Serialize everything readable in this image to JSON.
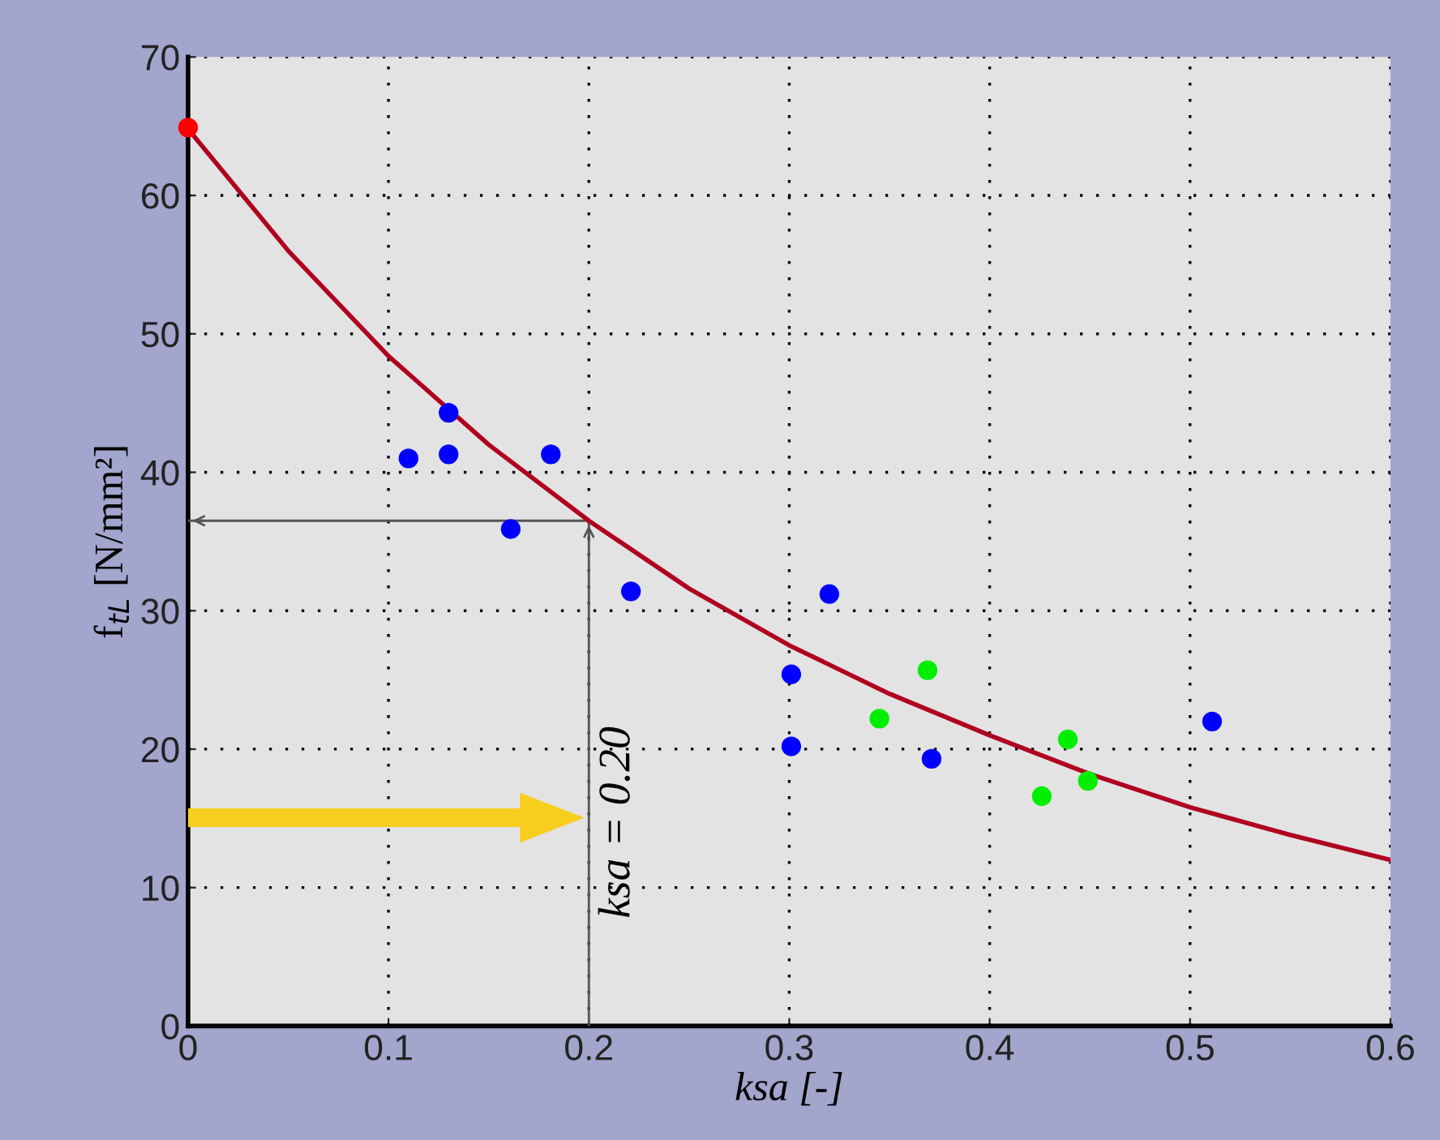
{
  "chart_data": {
    "type": "scatter",
    "xlabel": "ksa [-]",
    "ylabel": "f$_{tL}$ [N/mm²]",
    "xlim": [
      0,
      0.6
    ],
    "ylim": [
      0,
      70
    ],
    "xticks": [
      0,
      0.1,
      0.2,
      0.3,
      0.4,
      0.5,
      0.6
    ],
    "yticks": [
      0,
      10,
      20,
      30,
      40,
      50,
      60,
      70
    ],
    "grid": true,
    "marker": "circle",
    "series": [
      {
        "type": "line",
        "color": "#555555",
        "marker": "none",
        "x": [
          0,
          0.2,
          0.2
        ],
        "values": [
          36.5,
          36.5,
          0
        ]
      },
      {
        "type": "line",
        "marker": "none",
        "color": "#b00020",
        "x": [
          0,
          0.05,
          0.1,
          0.15,
          0.2,
          0.25,
          0.3,
          0.35,
          0.4,
          0.45,
          0.5,
          0.55,
          0.6
        ],
        "values": [
          64.8,
          56.0,
          48.4,
          42.0,
          36.5,
          31.6,
          27.5,
          24.0,
          21.0,
          18.2,
          15.8,
          13.8,
          12.0
        ]
      },
      {
        "color": "#0000ff",
        "x": [
          0.11,
          0.13,
          0.13,
          0.181,
          0.161,
          0.221,
          0.32,
          0.301,
          0.301,
          0.371,
          0.511
        ],
        "values": [
          41.0,
          44.3,
          41.3,
          41.3,
          35.9,
          31.4,
          31.2,
          25.4,
          20.2,
          19.3,
          22.0
        ]
      },
      {
        "color": "#00ee00",
        "x": [
          0.345,
          0.369,
          0.439,
          0.426,
          0.449
        ],
        "values": [
          22.2,
          25.7,
          20.7,
          16.6,
          17.7
        ]
      },
      {
        "color": "#ff0000",
        "x": [
          0
        ],
        "values": [
          64.9
        ]
      }
    ],
    "annotations": [
      "ksa = 0.20"
    ]
  }
}
